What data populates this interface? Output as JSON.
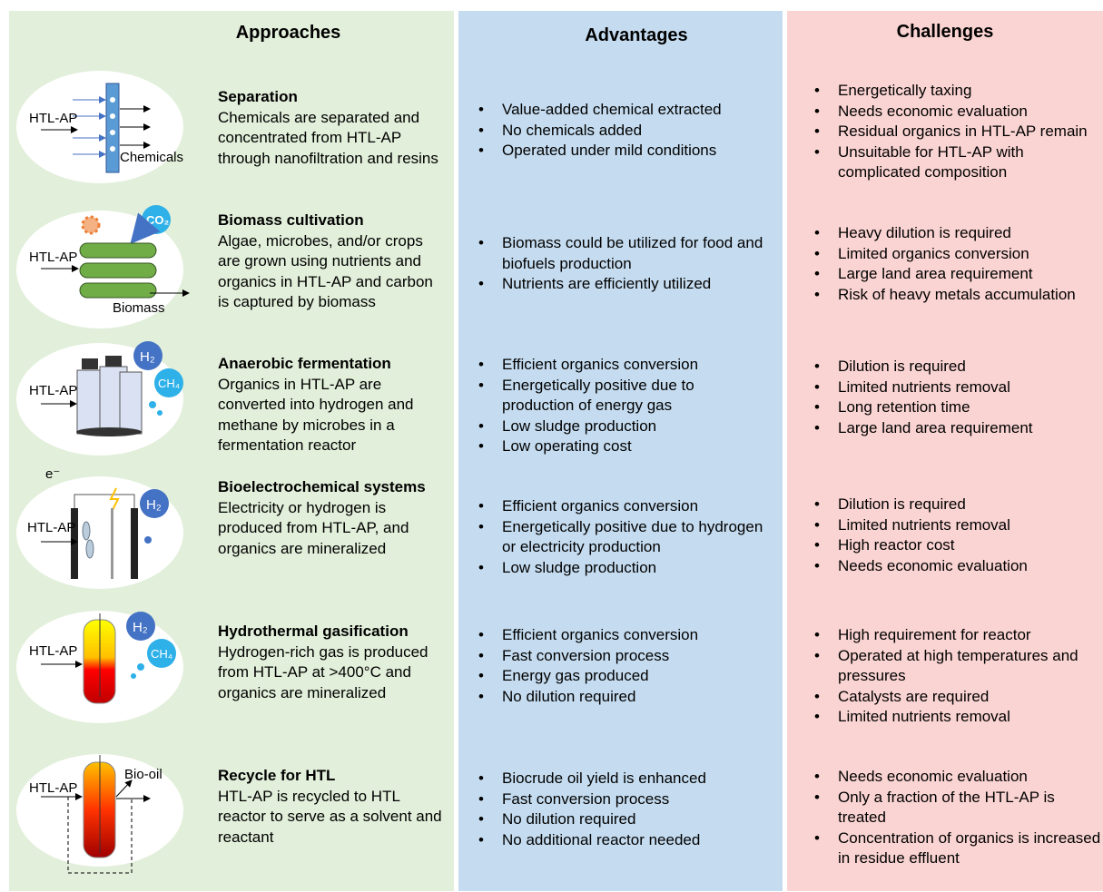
{
  "columns": {
    "approaches": "Approaches",
    "advantages": "Advantages",
    "challenges": "Challenges"
  },
  "rows": [
    {
      "title": "Separation",
      "description": "Chemicals are separated and concentrated from HTL-AP through nanofiltration and resins",
      "icon_labels": [
        "HTL-AP",
        "Chemicals"
      ],
      "advantages": [
        "Value-added chemical extracted",
        "No chemicals added",
        "Operated under mild conditions"
      ],
      "challenges": [
        "Energetically taxing",
        "Needs economic evaluation",
        "Residual organics in HTL-AP remain",
        "Unsuitable for HTL-AP with complicated composition"
      ]
    },
    {
      "title": "Biomass cultivation",
      "description": "Algae, microbes, and/or crops are grown using nutrients and organics in HTL-AP and carbon is captured by biomass",
      "icon_labels": [
        "CO₂",
        "HTL-AP",
        "Biomass"
      ],
      "advantages": [
        "Biomass could be utilized for food and biofuels production",
        "Nutrients are efficiently utilized"
      ],
      "challenges": [
        "Heavy dilution is required",
        "Limited organics conversion",
        "Large land area requirement",
        "Risk of heavy metals accumulation"
      ]
    },
    {
      "title": "Anaerobic fermentation",
      "description": "Organics in HTL-AP are converted into hydrogen and methane by microbes in a fermentation reactor",
      "icon_labels": [
        "H₂",
        "CH₄",
        "HTL-AP"
      ],
      "advantages": [
        "Efficient organics conversion",
        "Energetically positive due to production of energy gas",
        "Low sludge production",
        "Low operating cost"
      ],
      "challenges": [
        "Dilution is required",
        "Limited nutrients removal",
        "Long retention time",
        "Large land area requirement"
      ]
    },
    {
      "title": "Bioelectrochemical systems",
      "description": "Electricity or hydrogen is produced from HTL-AP, and organics are mineralized",
      "icon_labels": [
        "e⁻",
        "H₂",
        "HTL-AP"
      ],
      "advantages": [
        "Efficient organics conversion",
        "Energetically positive due to hydrogen or electricity production",
        "Low sludge production"
      ],
      "challenges": [
        "Dilution is required",
        "Limited nutrients removal",
        "High reactor cost",
        "Needs economic evaluation"
      ]
    },
    {
      "title": "Hydrothermal gasification",
      "description": "Hydrogen-rich gas is produced from HTL-AP at >400°C and organics are mineralized",
      "icon_labels": [
        "H₂",
        "CH₄",
        "HTL-AP"
      ],
      "advantages": [
        "Efficient organics conversion",
        "Fast conversion process",
        "Energy gas produced",
        "No dilution required"
      ],
      "challenges": [
        "High requirement for reactor",
        "Operated at high temperatures and pressures",
        "Catalysts are required",
        "Limited nutrients removal"
      ]
    },
    {
      "title": "Recycle for HTL",
      "description": "HTL-AP is recycled to HTL reactor to serve as a solvent and reactant",
      "icon_labels": [
        "HTL-AP",
        "Bio-oil"
      ],
      "advantages": [
        "Biocrude oil yield is enhanced",
        "Fast conversion process",
        "No dilution required",
        "No additional reactor needed"
      ],
      "challenges": [
        "Needs economic evaluation",
        "Only a fraction of the HTL-AP is treated",
        "Concentration of organics is increased in residue effluent"
      ]
    }
  ]
}
